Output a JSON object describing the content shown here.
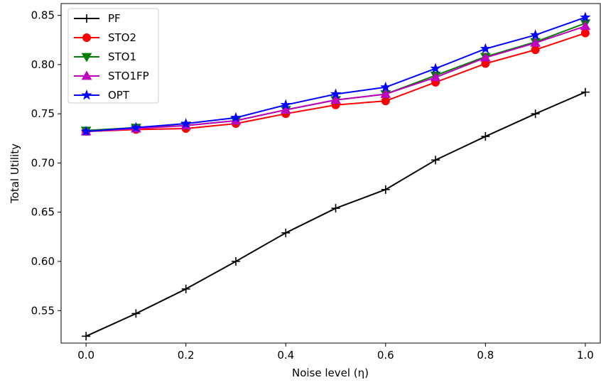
{
  "chart_data": {
    "type": "line",
    "title": "",
    "xlabel": "Noise level (η)",
    "ylabel": "Total Utility",
    "xlim": [
      -0.05,
      1.03
    ],
    "ylim": [
      0.517,
      0.862
    ],
    "xticks": [
      "0.0",
      "0.2",
      "0.4",
      "0.6",
      "0.8",
      "1.0"
    ],
    "xtick_values": [
      0.0,
      0.2,
      0.4,
      0.6,
      0.8,
      1.0
    ],
    "yticks": [
      "0.55",
      "0.60",
      "0.65",
      "0.70",
      "0.75",
      "0.80",
      "0.85"
    ],
    "ytick_values": [
      0.55,
      0.6,
      0.65,
      0.7,
      0.75,
      0.8,
      0.85
    ],
    "grid": false,
    "legend_position": "upper-left",
    "x": [
      0.0,
      0.1,
      0.2,
      0.3,
      0.4,
      0.5,
      0.6,
      0.7,
      0.8,
      0.9,
      1.0
    ],
    "series": [
      {
        "name": "PF",
        "color": "#000000",
        "marker": "plus",
        "values": [
          0.524,
          0.547,
          0.572,
          0.6,
          0.629,
          0.654,
          0.673,
          0.703,
          0.727,
          0.75,
          0.772
        ]
      },
      {
        "name": "STO2",
        "color": "#ff0000",
        "marker": "circle",
        "values": [
          0.732,
          0.734,
          0.735,
          0.74,
          0.75,
          0.759,
          0.763,
          0.782,
          0.801,
          0.815,
          0.832
        ]
      },
      {
        "name": "STO1",
        "color": "#008000",
        "marker": "triangle-down",
        "values": [
          0.733,
          0.736,
          0.738,
          0.743,
          0.754,
          0.764,
          0.77,
          0.789,
          0.808,
          0.823,
          0.842
        ]
      },
      {
        "name": "STO1FP",
        "color": "#bf00bf",
        "marker": "triangle-up",
        "values": [
          0.732,
          0.735,
          0.738,
          0.743,
          0.754,
          0.764,
          0.77,
          0.787,
          0.807,
          0.822,
          0.839
        ]
      },
      {
        "name": "OPT",
        "color": "#0000ff",
        "marker": "star",
        "values": [
          0.732,
          0.736,
          0.74,
          0.746,
          0.759,
          0.77,
          0.777,
          0.796,
          0.816,
          0.83,
          0.848
        ]
      }
    ]
  }
}
